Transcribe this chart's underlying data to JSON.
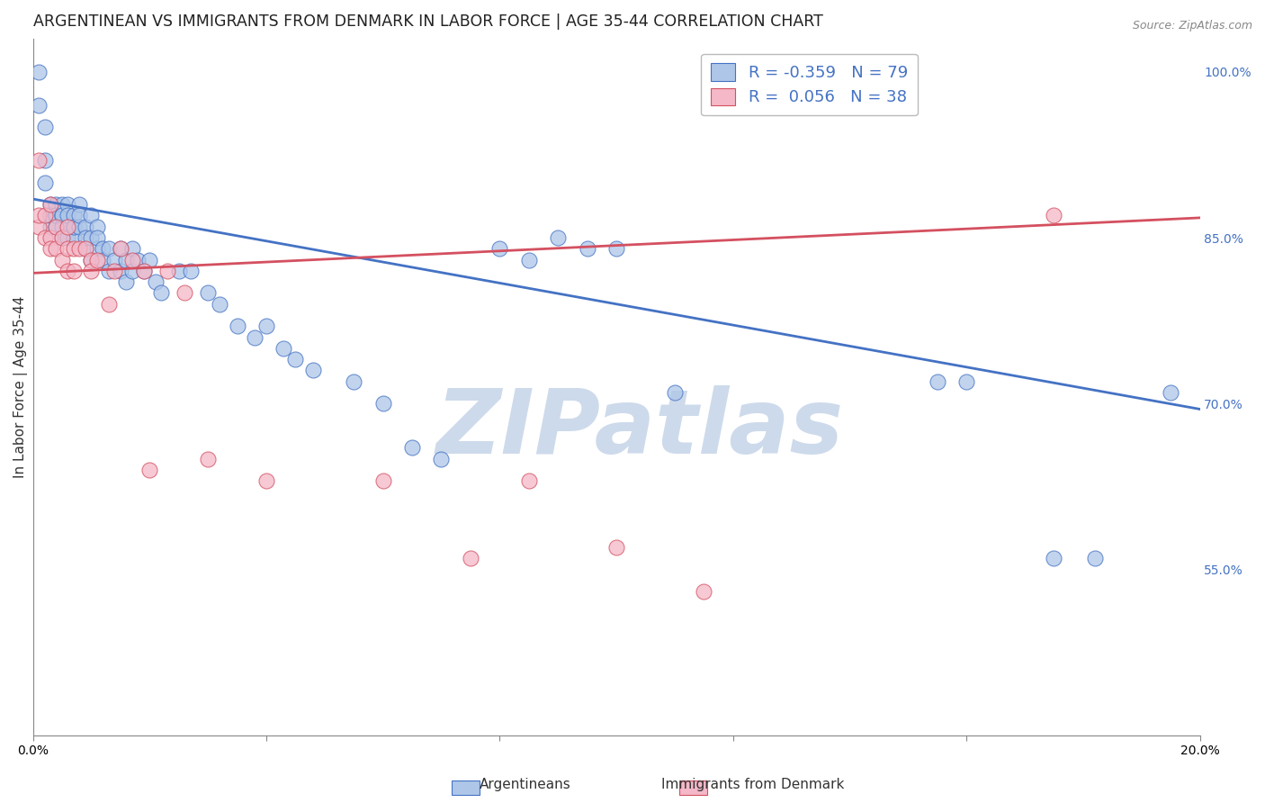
{
  "title": "ARGENTINEAN VS IMMIGRANTS FROM DENMARK IN LABOR FORCE | AGE 35-44 CORRELATION CHART",
  "source": "Source: ZipAtlas.com",
  "ylabel": "In Labor Force | Age 35-44",
  "xlabel": "",
  "xlim": [
    0.0,
    0.2
  ],
  "ylim": [
    0.4,
    1.03
  ],
  "yticks": [
    0.55,
    0.7,
    0.85,
    1.0
  ],
  "ytick_labels": [
    "55.0%",
    "70.0%",
    "85.0%",
    "100.0%"
  ],
  "xticks": [
    0.0,
    0.04,
    0.08,
    0.12,
    0.16,
    0.2
  ],
  "xtick_labels": [
    "0.0%",
    "",
    "",
    "",
    "",
    "20.0%"
  ],
  "blue_R": -0.359,
  "blue_N": 79,
  "pink_R": 0.056,
  "pink_N": 38,
  "blue_color": "#aec6e8",
  "pink_color": "#f4b8c8",
  "blue_line_color": "#4472c4",
  "pink_line_color": "#d45060",
  "blue_line_y0": 0.885,
  "blue_line_y1": 0.695,
  "pink_line_y0": 0.818,
  "pink_line_y1": 0.868,
  "blue_x": [
    0.001,
    0.001,
    0.002,
    0.002,
    0.002,
    0.003,
    0.003,
    0.003,
    0.003,
    0.004,
    0.004,
    0.004,
    0.004,
    0.005,
    0.005,
    0.005,
    0.005,
    0.005,
    0.006,
    0.006,
    0.006,
    0.006,
    0.007,
    0.007,
    0.007,
    0.007,
    0.008,
    0.008,
    0.008,
    0.009,
    0.009,
    0.009,
    0.01,
    0.01,
    0.01,
    0.011,
    0.011,
    0.011,
    0.012,
    0.012,
    0.013,
    0.013,
    0.014,
    0.015,
    0.015,
    0.016,
    0.016,
    0.017,
    0.017,
    0.018,
    0.019,
    0.02,
    0.021,
    0.022,
    0.025,
    0.027,
    0.03,
    0.032,
    0.035,
    0.038,
    0.04,
    0.043,
    0.045,
    0.048,
    0.055,
    0.06,
    0.065,
    0.07,
    0.08,
    0.085,
    0.09,
    0.095,
    0.1,
    0.11,
    0.155,
    0.16,
    0.175,
    0.182,
    0.195
  ],
  "blue_y": [
    0.97,
    1.0,
    0.9,
    0.95,
    0.92,
    0.88,
    0.87,
    0.86,
    0.87,
    0.88,
    0.87,
    0.86,
    0.87,
    0.87,
    0.86,
    0.88,
    0.87,
    0.85,
    0.88,
    0.86,
    0.87,
    0.85,
    0.86,
    0.87,
    0.85,
    0.86,
    0.88,
    0.86,
    0.87,
    0.84,
    0.86,
    0.85,
    0.83,
    0.85,
    0.87,
    0.84,
    0.86,
    0.85,
    0.84,
    0.83,
    0.82,
    0.84,
    0.83,
    0.82,
    0.84,
    0.83,
    0.81,
    0.84,
    0.82,
    0.83,
    0.82,
    0.83,
    0.81,
    0.8,
    0.82,
    0.82,
    0.8,
    0.79,
    0.77,
    0.76,
    0.77,
    0.75,
    0.74,
    0.73,
    0.72,
    0.7,
    0.66,
    0.65,
    0.84,
    0.83,
    0.85,
    0.84,
    0.84,
    0.71,
    0.72,
    0.72,
    0.56,
    0.56,
    0.71
  ],
  "pink_x": [
    0.001,
    0.001,
    0.001,
    0.002,
    0.002,
    0.003,
    0.003,
    0.003,
    0.004,
    0.004,
    0.005,
    0.005,
    0.006,
    0.006,
    0.006,
    0.007,
    0.007,
    0.008,
    0.009,
    0.01,
    0.01,
    0.011,
    0.013,
    0.014,
    0.015,
    0.017,
    0.019,
    0.02,
    0.023,
    0.026,
    0.03,
    0.04,
    0.06,
    0.075,
    0.085,
    0.1,
    0.115,
    0.175
  ],
  "pink_y": [
    0.86,
    0.87,
    0.92,
    0.85,
    0.87,
    0.85,
    0.84,
    0.88,
    0.86,
    0.84,
    0.83,
    0.85,
    0.82,
    0.84,
    0.86,
    0.84,
    0.82,
    0.84,
    0.84,
    0.83,
    0.82,
    0.83,
    0.79,
    0.82,
    0.84,
    0.83,
    0.82,
    0.64,
    0.82,
    0.8,
    0.65,
    0.63,
    0.63,
    0.56,
    0.63,
    0.57,
    0.53,
    0.87
  ],
  "background_color": "#ffffff",
  "grid_color": "#cccccc",
  "title_fontsize": 12.5,
  "axis_label_fontsize": 11,
  "tick_fontsize": 10,
  "legend_fontsize": 13,
  "watermark_text": "ZIPatlas",
  "watermark_color": "#cddaeb",
  "watermark_fontsize": 72
}
